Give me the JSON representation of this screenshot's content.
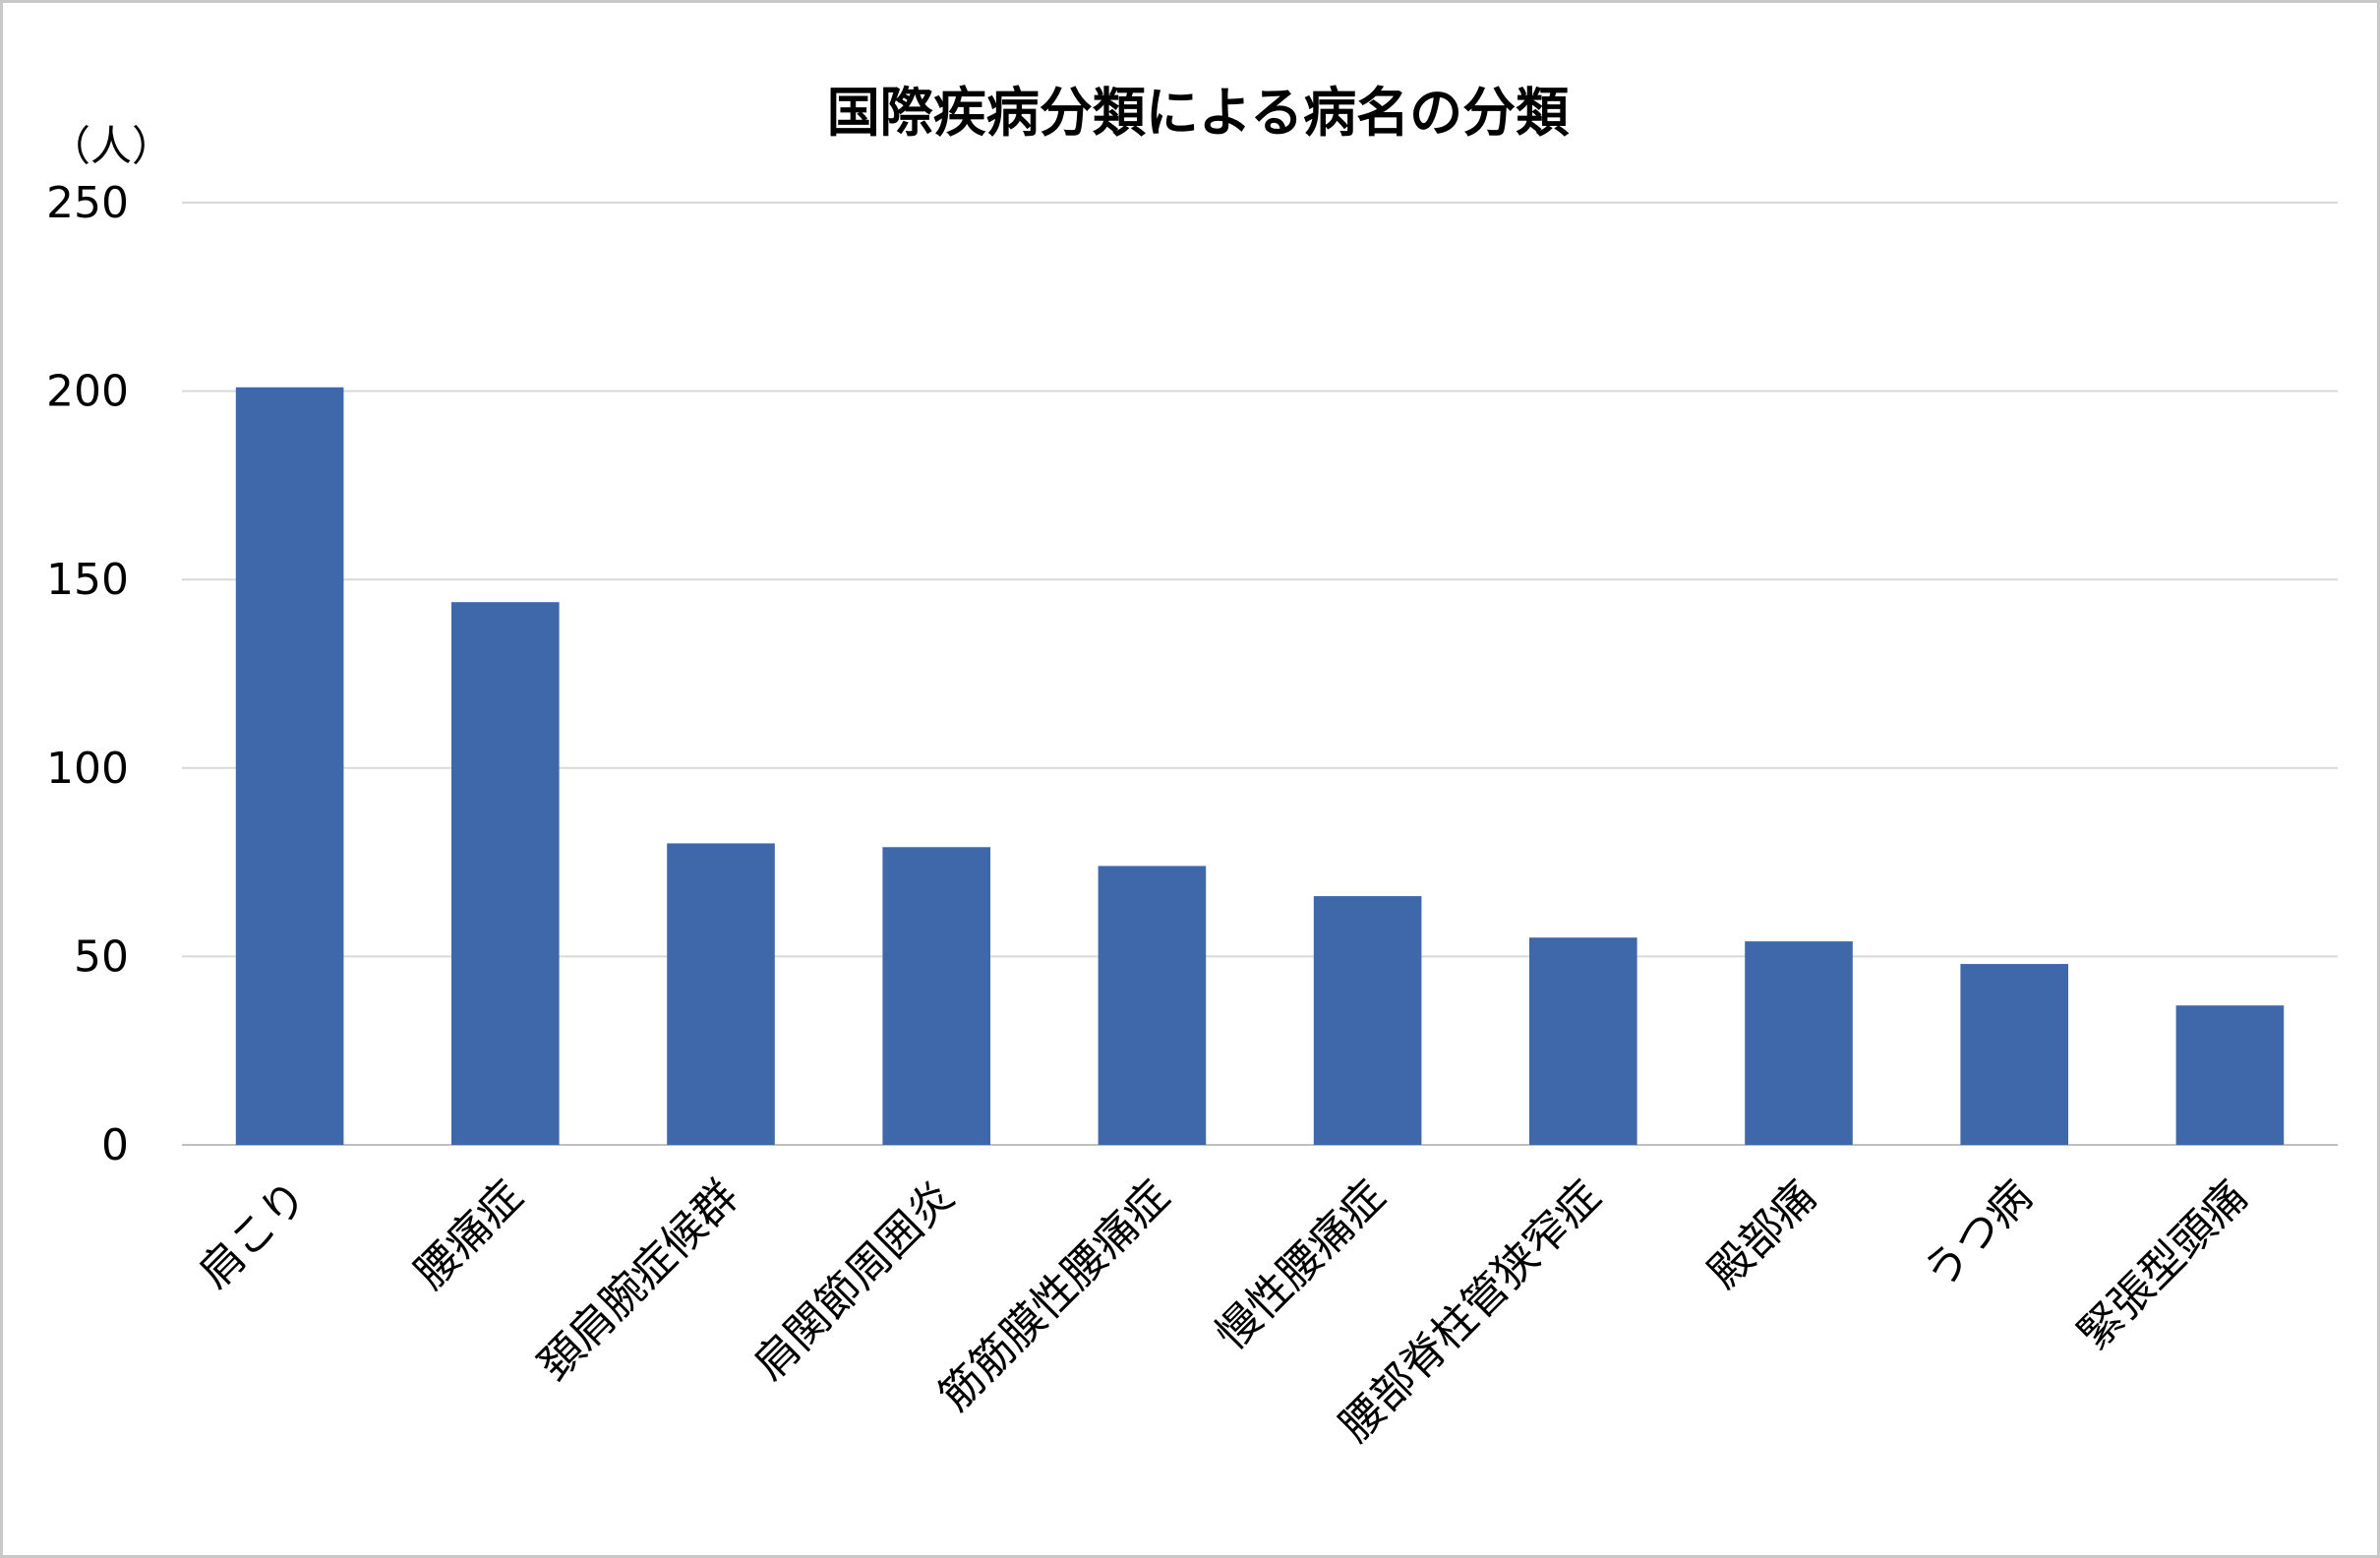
{
  "chart_data": {
    "type": "bar",
    "title": "国際疾病分類による病名の分類",
    "ylabel": "（人）",
    "xlabel": "",
    "ylim": [
      0,
      250
    ],
    "yticks": [
      0,
      50,
      100,
      150,
      200,
      250
    ],
    "categories": [
      "肩こり",
      "腰痛症",
      "頚肩腕症候群",
      "肩関節周囲炎",
      "筋筋膜性腰痛症",
      "慢性腰痛症",
      "腰部脊柱管狭窄症",
      "殿部痛",
      "うつ病",
      "緊張型頭痛"
    ],
    "values": [
      201,
      144,
      80,
      79,
      74,
      66,
      55,
      54,
      48,
      37
    ],
    "bar_color": "#3e68aa",
    "grid": true,
    "legend": "none"
  }
}
